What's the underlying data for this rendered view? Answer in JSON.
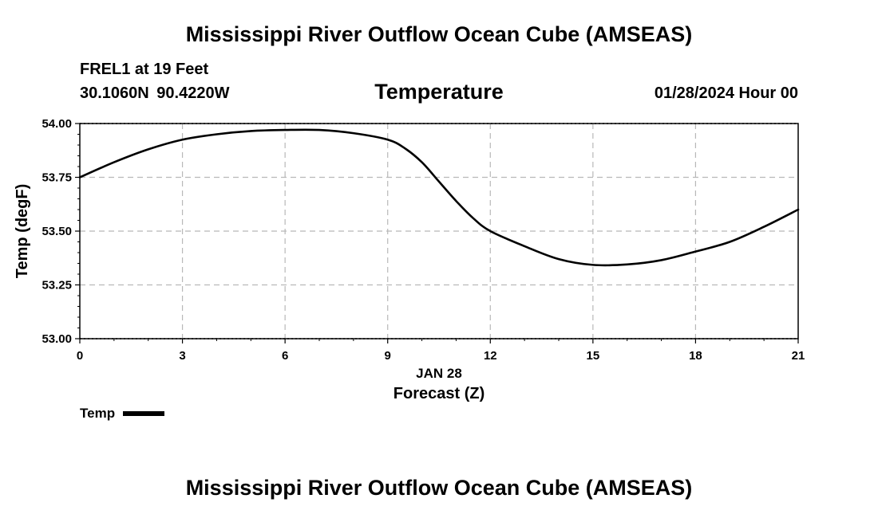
{
  "header": {
    "main_title": "Mississippi River Outflow Ocean Cube (AMSEAS)",
    "station": "FREL1 at 19 Feet",
    "coordinates": "30.1060N  90.4220W",
    "datetime": "01/28/2024 Hour 00",
    "bottom_title": "Mississippi River Outflow Ocean Cube (AMSEAS)"
  },
  "legend": {
    "label": "Temp"
  },
  "chart_data": {
    "type": "line",
    "title": "Temperature",
    "xlabel": "Forecast (Z)",
    "xlabel_date": "JAN 28",
    "ylabel": "Temp (degF)",
    "xlim": [
      0,
      21
    ],
    "ylim": [
      53.0,
      54.0
    ],
    "x_ticks": [
      0,
      3,
      6,
      9,
      12,
      15,
      18,
      21
    ],
    "x_tick_labels": [
      "0",
      "3",
      "6",
      "9",
      "12",
      "15",
      "18",
      "21"
    ],
    "y_ticks": [
      53.0,
      53.25,
      53.5,
      53.75,
      54.0
    ],
    "y_tick_labels": [
      "53.00",
      "53.25",
      "53.50",
      "53.75",
      "54.00"
    ],
    "grid": true,
    "series": [
      {
        "name": "Temp",
        "color": "#000000",
        "x": [
          0,
          1,
          2,
          3,
          4,
          5,
          6,
          7,
          8,
          9,
          9.5,
          10,
          10.5,
          11,
          11.5,
          12,
          13,
          14,
          15,
          16,
          17,
          18,
          19,
          20,
          21
        ],
        "values": [
          53.75,
          53.82,
          53.88,
          53.925,
          53.95,
          53.965,
          53.97,
          53.97,
          53.955,
          53.925,
          53.885,
          53.82,
          53.73,
          53.64,
          53.56,
          53.5,
          53.43,
          53.37,
          53.343,
          53.345,
          53.365,
          53.405,
          53.45,
          53.52,
          53.6
        ]
      }
    ]
  }
}
